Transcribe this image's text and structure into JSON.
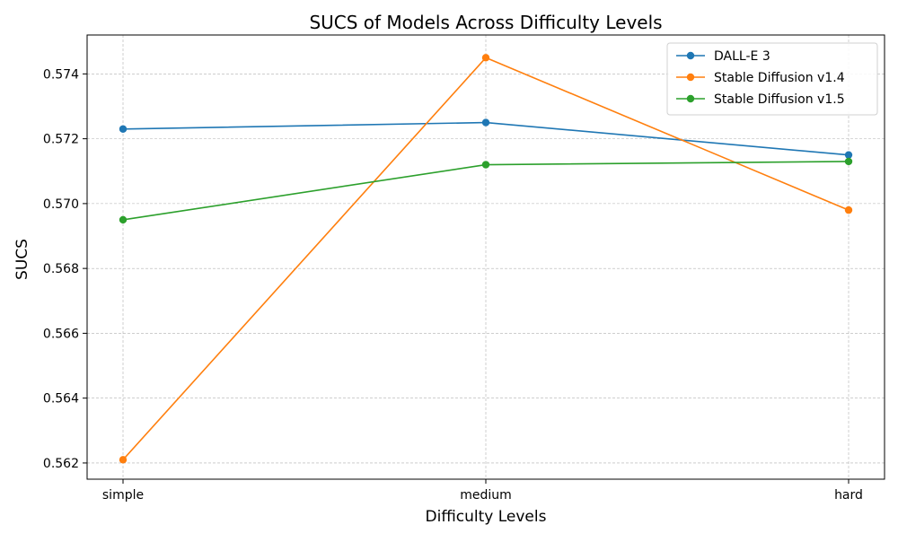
{
  "chart_data": {
    "type": "line",
    "title": "SUCS of Models Across Difficulty Levels",
    "xlabel": "Difficulty Levels",
    "ylabel": "SUCS",
    "categories": [
      "simple",
      "medium",
      "hard"
    ],
    "ylim": [
      0.5615,
      0.5752
    ],
    "yticks": [
      0.562,
      0.564,
      0.566,
      0.568,
      0.57,
      0.572,
      0.574
    ],
    "ytick_labels": [
      "0.562",
      "0.564",
      "0.566",
      "0.568",
      "0.570",
      "0.572",
      "0.574"
    ],
    "grid": true,
    "legend_position": "top-right",
    "series": [
      {
        "name": "DALL-E 3",
        "color": "#1f77b4",
        "values": [
          0.5723,
          0.5725,
          0.5715
        ]
      },
      {
        "name": "Stable Diffusion v1.4",
        "color": "#ff7f0e",
        "values": [
          0.5621,
          0.5745,
          0.5698
        ]
      },
      {
        "name": "Stable Diffusion v1.5",
        "color": "#2ca02c",
        "values": [
          0.5695,
          0.5712,
          0.5713
        ]
      }
    ]
  }
}
